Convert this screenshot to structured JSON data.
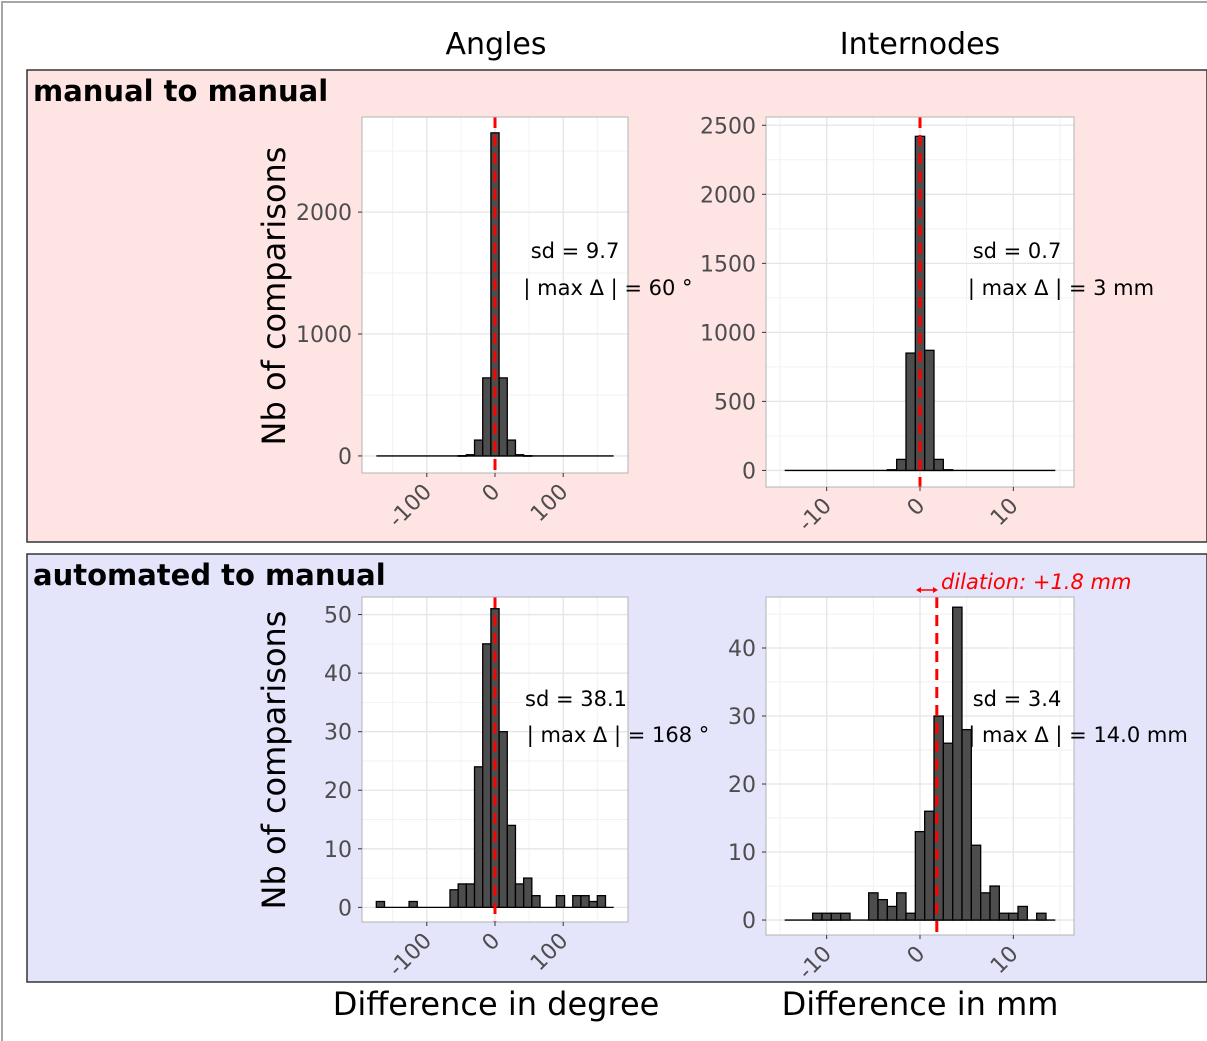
{
  "figure": {
    "column_titles": [
      "Angles",
      "Internodes"
    ],
    "row_titles": [
      "manual to manual",
      "automated to manual"
    ],
    "ylabel": "Nb of comparisons",
    "xlabels": [
      "Difference in degree",
      "Difference in mm"
    ],
    "colors": {
      "row1_bg": "#ffe4e4",
      "row2_bg": "#e4e4fb",
      "bar": "#4d4d4d",
      "refline": "#ff0000"
    }
  },
  "chart_data": [
    {
      "type": "bar",
      "row": "manual to manual",
      "column": "Angles",
      "bin_width": 12,
      "x": [
        -168,
        -156,
        -144,
        -132,
        -120,
        -108,
        -96,
        -84,
        -72,
        -60,
        -48,
        -36,
        -24,
        -12,
        0,
        12,
        24,
        36,
        48,
        60,
        72,
        84,
        96,
        108,
        120,
        132,
        144,
        156,
        168
      ],
      "values": [
        0,
        0,
        0,
        0,
        0,
        0,
        0,
        0,
        0,
        0,
        2,
        10,
        130,
        640,
        2650,
        640,
        130,
        10,
        2,
        0,
        0,
        0,
        0,
        0,
        0,
        0,
        0,
        0,
        0
      ],
      "xlim": [
        -195,
        195
      ],
      "ylim": [
        -140,
        2780
      ],
      "xticks": [
        -100,
        0,
        100
      ],
      "yticks": [
        0,
        1000,
        2000
      ],
      "refline_x": 0,
      "annotations": [
        "sd = 9.7",
        "| max Δ | = 60 °"
      ],
      "grid": true
    },
    {
      "type": "bar",
      "row": "manual to manual",
      "column": "Internodes",
      "bin_width": 1,
      "x": [
        -14,
        -13,
        -12,
        -11,
        -10,
        -9,
        -8,
        -7,
        -6,
        -5,
        -4,
        -3,
        -2,
        -1,
        0,
        1,
        2,
        3,
        4,
        5,
        6,
        7,
        8,
        9,
        10,
        11,
        12,
        13,
        14
      ],
      "values": [
        0,
        0,
        0,
        0,
        0,
        0,
        0,
        0,
        0,
        0,
        0,
        5,
        80,
        850,
        2420,
        870,
        80,
        5,
        0,
        0,
        0,
        0,
        0,
        0,
        0,
        0,
        0,
        0,
        0
      ],
      "xlim": [
        -16.5,
        16.5
      ],
      "ylim": [
        -120,
        2560
      ],
      "xticks": [
        -10,
        0,
        10
      ],
      "yticks": [
        0,
        500,
        1000,
        1500,
        2000,
        2500
      ],
      "refline_x": 0,
      "annotations": [
        "sd = 0.7",
        "| max Δ | = 3 mm"
      ],
      "grid": true
    },
    {
      "type": "bar",
      "row": "automated to manual",
      "column": "Angles",
      "bin_width": 12,
      "x": [
        -168,
        -156,
        -144,
        -132,
        -120,
        -108,
        -96,
        -84,
        -72,
        -60,
        -48,
        -36,
        -24,
        -12,
        0,
        12,
        24,
        36,
        48,
        60,
        72,
        84,
        96,
        108,
        120,
        132,
        144,
        156,
        168
      ],
      "values": [
        1,
        0,
        0,
        0,
        1,
        0,
        0,
        0,
        0,
        3,
        4,
        4,
        24,
        45,
        51,
        30,
        14,
        4,
        5,
        2,
        0,
        0,
        2,
        0,
        2,
        2,
        1,
        2,
        0
      ],
      "xlim": [
        -195,
        195
      ],
      "ylim": [
        -2.5,
        53
      ],
      "xticks": [
        -100,
        0,
        100
      ],
      "yticks": [
        0,
        10,
        20,
        30,
        40,
        50
      ],
      "refline_x": 0,
      "annotations": [
        "sd = 38.1",
        "| max Δ | = 168 °"
      ],
      "grid": true
    },
    {
      "type": "bar",
      "row": "automated to manual",
      "column": "Internodes",
      "bin_width": 1,
      "x": [
        -14,
        -13,
        -12,
        -11,
        -10,
        -9,
        -8,
        -7,
        -6,
        -5,
        -4,
        -3,
        -2,
        -1,
        0,
        1,
        2,
        3,
        4,
        5,
        6,
        7,
        8,
        9,
        10,
        11,
        12,
        13,
        14
      ],
      "values": [
        0,
        0,
        0,
        1,
        1,
        1,
        1,
        0,
        0,
        4,
        3,
        2,
        4,
        1,
        13,
        16,
        30,
        26,
        46,
        28,
        11,
        4,
        5,
        1,
        1,
        2,
        0,
        1,
        0
      ],
      "xlim": [
        -16.5,
        16.5
      ],
      "ylim": [
        -2.2,
        47.5
      ],
      "xticks": [
        -10,
        0,
        10
      ],
      "yticks": [
        0,
        10,
        20,
        30,
        40
      ],
      "refline_x": 1.8,
      "annotations": [
        "sd = 3.4",
        "| max Δ | = 14.0 mm"
      ],
      "dilation_label": "dilation: +1.8 mm",
      "grid": true
    }
  ]
}
